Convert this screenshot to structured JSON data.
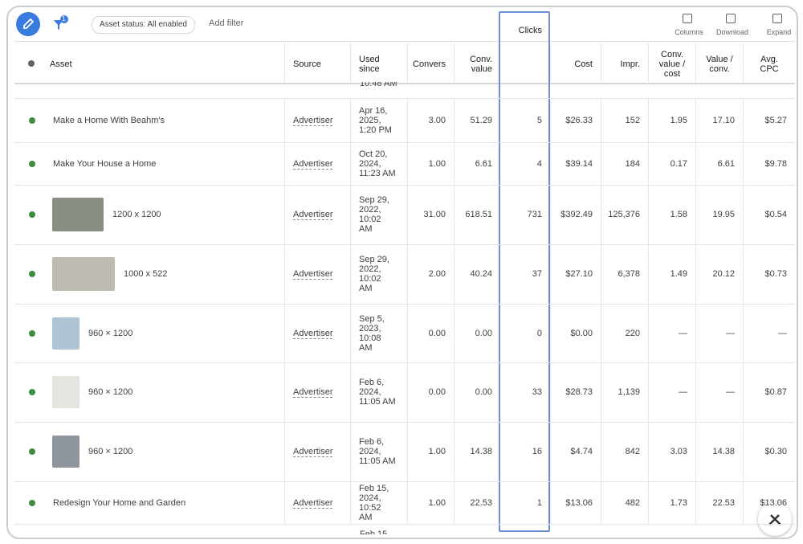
{
  "toolbar": {
    "filter_badge": "1",
    "chip": "Asset status: All enabled",
    "add_filter": "Add filter",
    "actions": [
      "Columns",
      "Download",
      "Expand"
    ]
  },
  "table": {
    "headers": [
      "Asset",
      "Source",
      "Used since",
      "Convers",
      "Conv. value",
      "Clicks",
      "Cost",
      "Impr.",
      "Conv. value / cost",
      "Value / conv.",
      "Avg. CPC"
    ],
    "top_fragment": "10:48 AM",
    "rows": [
      [
        "Make a Home With Beahm's",
        "Advertiser",
        "Apr 16, 2025, 1:20 PM",
        "3.00",
        "51.29",
        "5",
        "$26.33",
        "152",
        "1.95",
        "17.10",
        "$5.27"
      ],
      [
        "Make Your House a Home",
        "Advertiser",
        "Oct 20, 2024, 11:23 AM",
        "1.00",
        "6.61",
        "4",
        "$39.14",
        "184",
        "0.17",
        "6.61",
        "$9.78"
      ],
      [
        "1200 x 1200",
        "Advertiser",
        "Sep 29, 2022, 10:02 AM",
        "31.00",
        "618.51",
        "731",
        "$392.49",
        "125,376",
        "1.58",
        "19.95",
        "$0.54"
      ],
      [
        "1000 x 522",
        "Advertiser",
        "Sep 29, 2022, 10:02 AM",
        "2.00",
        "40.24",
        "37",
        "$27.10",
        "6,378",
        "1.49",
        "20.12",
        "$0.73"
      ],
      [
        "960 × 1200",
        "Advertiser",
        "Sep 5, 2023, 10:08 AM",
        "0.00",
        "0.00",
        "0",
        "$0.00",
        "220",
        "—",
        "—",
        "—"
      ],
      [
        "960 × 1200",
        "Advertiser",
        "Feb 6, 2024, 11:05 AM",
        "0.00",
        "0.00",
        "33",
        "$28.73",
        "1,139",
        "—",
        "—",
        "$0.87"
      ],
      [
        "960 × 1200",
        "Advertiser",
        "Feb 6, 2024, 11:05 AM",
        "1.00",
        "14.38",
        "16",
        "$4.74",
        "842",
        "3.03",
        "14.38",
        "$0.30"
      ],
      [
        "Redesign Your Home and Garden",
        "Advertiser",
        "Feb 15, 2024, 10:52 AM",
        "1.00",
        "22.53",
        "1",
        "$13.06",
        "482",
        "1.73",
        "22.53",
        "$13.06"
      ]
    ],
    "bottom_fragment": "Feb 15,"
  }
}
